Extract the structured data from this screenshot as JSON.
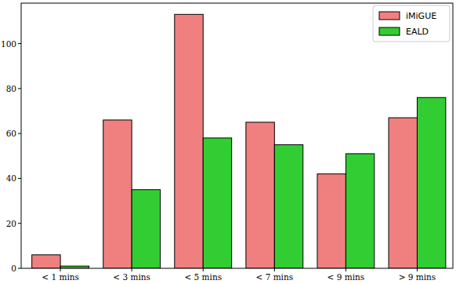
{
  "chart_data": {
    "type": "bar",
    "categories": [
      "< 1 mins",
      "< 3 mins",
      "< 5 mins",
      "< 7 mins",
      "< 9 mins",
      "> 9 mins"
    ],
    "series": [
      {
        "name": "iMiGUE",
        "color": "#f08080",
        "values": [
          6,
          66,
          113,
          65,
          42,
          67
        ]
      },
      {
        "name": "EALD",
        "color": "#32cd32",
        "values": [
          1,
          35,
          58,
          55,
          51,
          76
        ]
      }
    ],
    "ylim": [
      0,
      118
    ],
    "yticks": [
      0,
      20,
      40,
      60,
      80,
      100
    ],
    "legend": "upper right",
    "grid": false
  }
}
